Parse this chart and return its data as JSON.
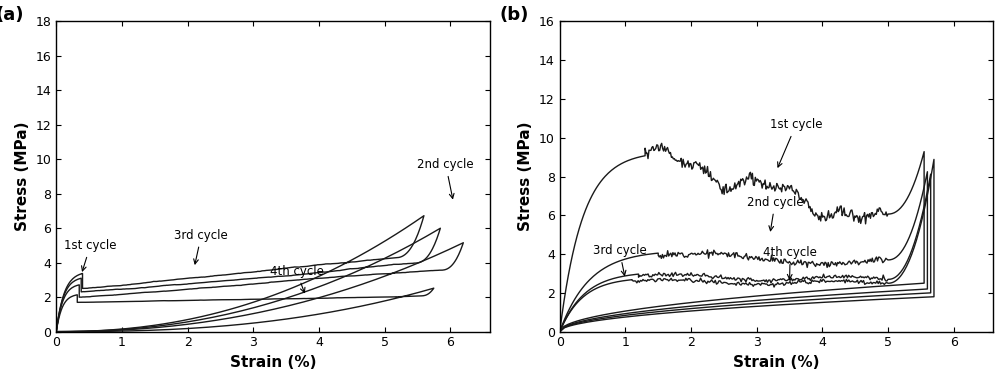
{
  "fig_width": 10.0,
  "fig_height": 3.77,
  "dpi": 100,
  "background_color": "#ffffff",
  "panel_a": {
    "label": "(a)",
    "xlabel": "Strain (%)",
    "ylabel": "Stress (MPa)",
    "xlim": [
      0,
      6.6
    ],
    "ylim": [
      0,
      18
    ],
    "xticks": [
      0,
      1,
      2,
      3,
      4,
      5,
      6
    ],
    "yticks": [
      0,
      2,
      4,
      6,
      8,
      10,
      12,
      14,
      16,
      18
    ]
  },
  "panel_b": {
    "label": "(b)",
    "xlabel": "Strain (%)",
    "ylabel": "Stress (MPa)",
    "xlim": [
      0,
      6.6
    ],
    "ylim": [
      0,
      16
    ],
    "xticks": [
      0,
      1,
      2,
      3,
      4,
      5,
      6
    ],
    "yticks": [
      0,
      2,
      4,
      6,
      8,
      10,
      12,
      14,
      16
    ]
  }
}
